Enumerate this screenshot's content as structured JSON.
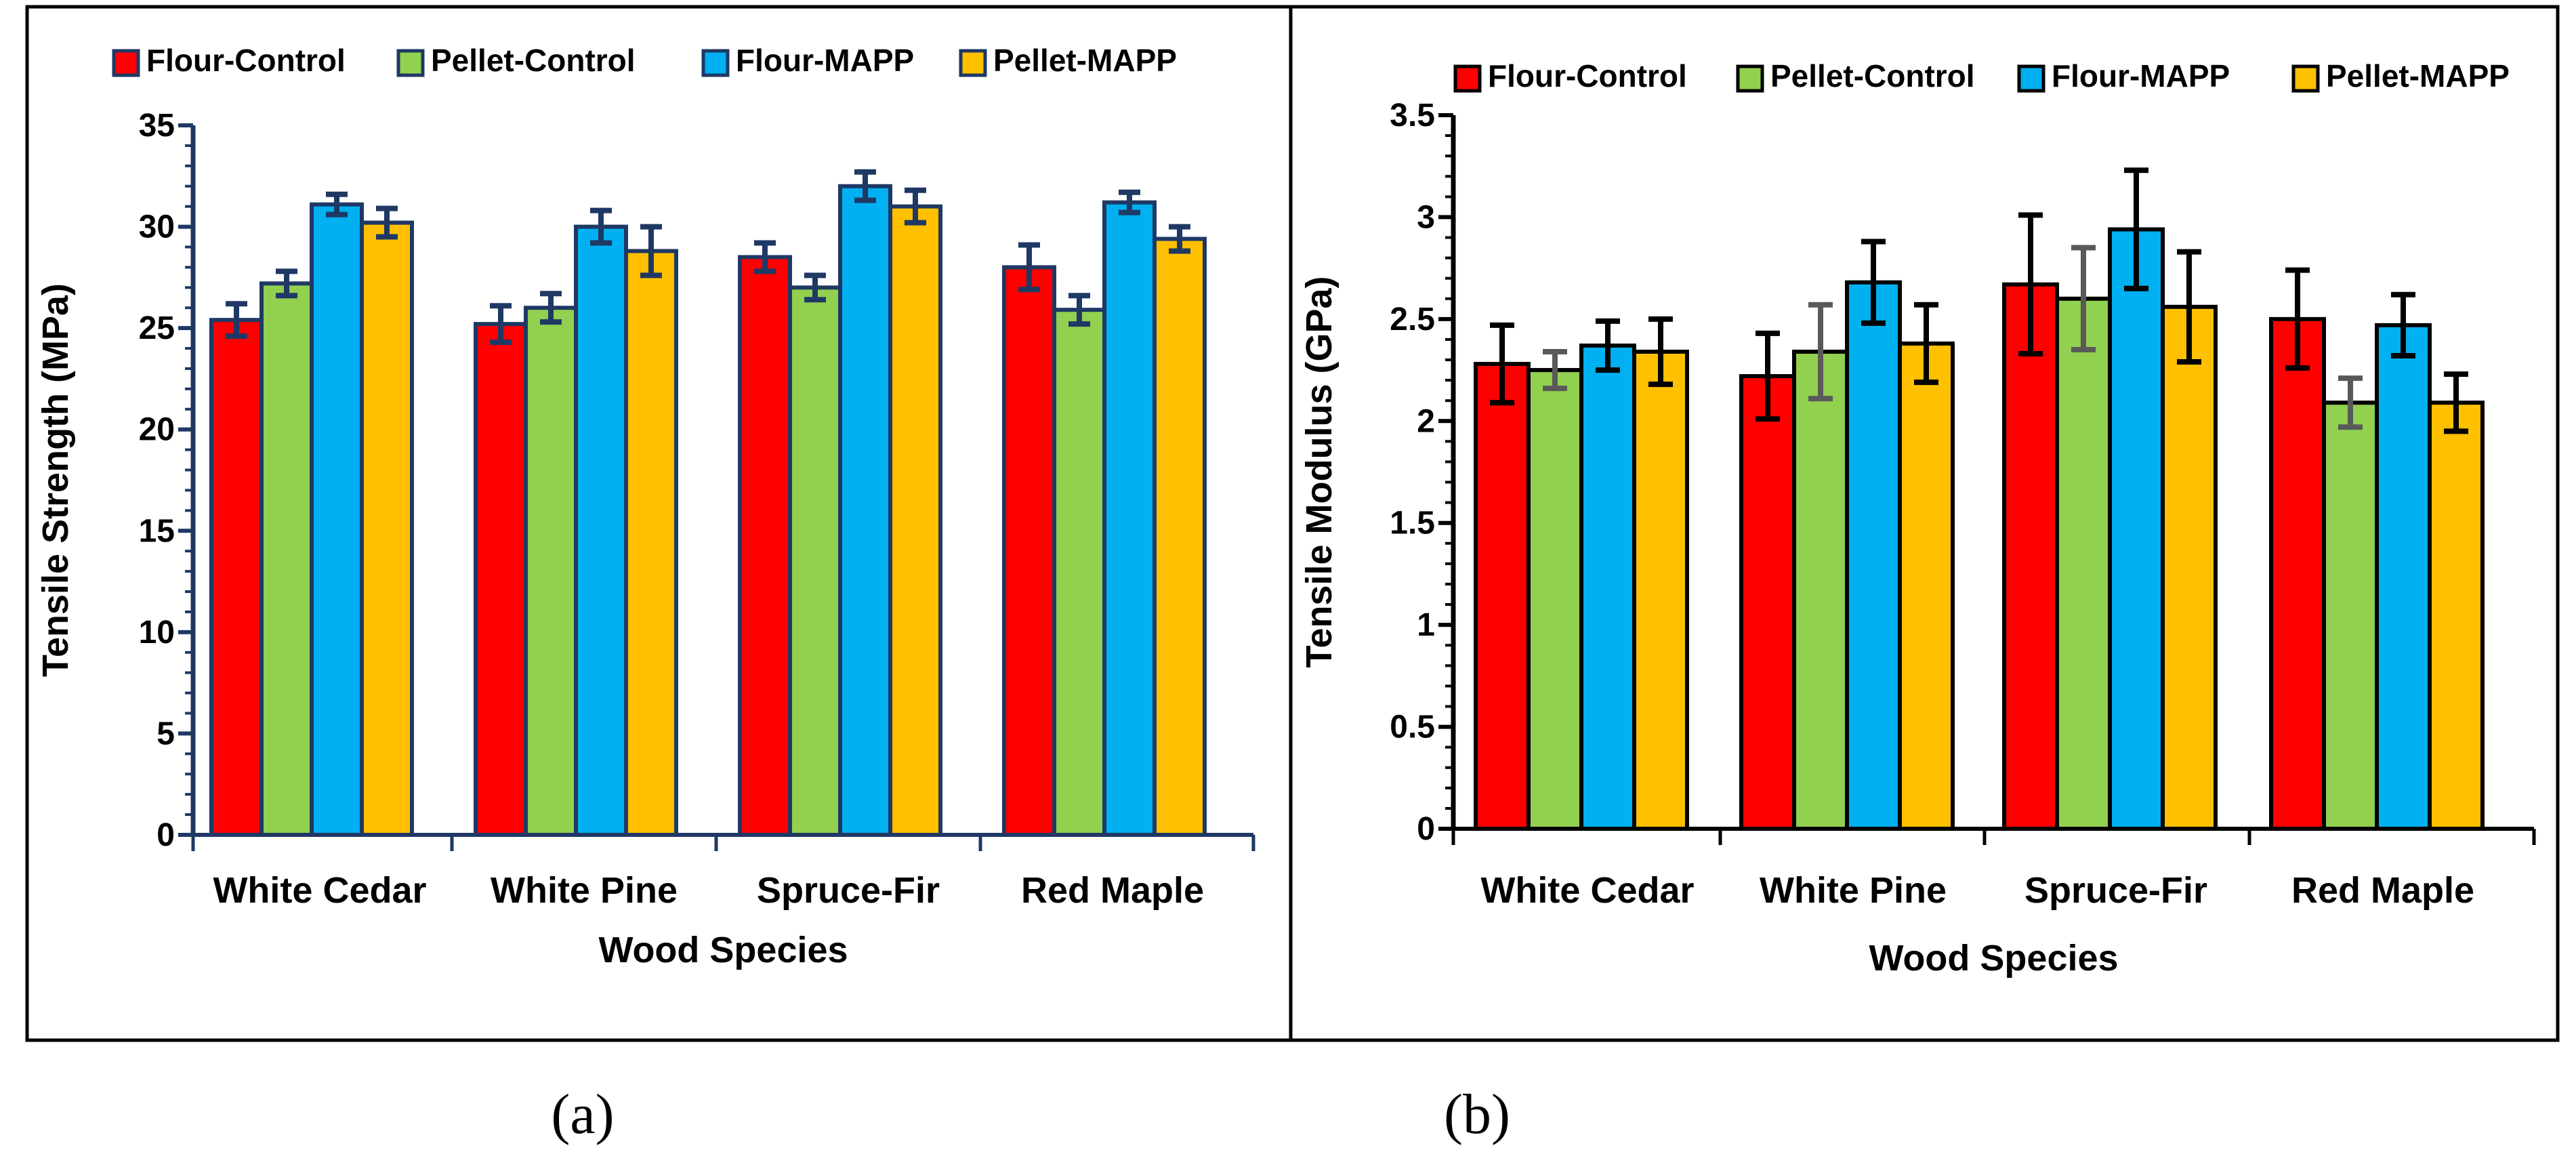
{
  "captions": {
    "a": "(a)",
    "b": "(b)"
  },
  "colors": {
    "Flour-Control": "#ff0000",
    "Pellet-Control": "#92d050",
    "Flour-MAPP": "#00b0f0",
    "Pellet-MAPP": "#ffc000"
  },
  "chart_data": [
    {
      "type": "bar",
      "panel": "a",
      "title": "",
      "xlabel": "Wood Species",
      "ylabel": "Tensile Strength (MPa)",
      "categories": [
        "White Cedar",
        "White Pine",
        "Spruce-Fir",
        "Red Maple"
      ],
      "ylim": [
        0,
        35
      ],
      "yticks": [
        0,
        5,
        10,
        15,
        20,
        25,
        30,
        35
      ],
      "ytick_labels": [
        "0",
        "5",
        "10",
        "15",
        "20",
        "25",
        "30",
        "35"
      ],
      "legend_position": "top",
      "bar_outline": "#1f3864",
      "error_color": "#1f3864",
      "series": [
        {
          "name": "Flour-Control",
          "values": [
            25.4,
            25.2,
            28.5,
            28.0
          ],
          "errors": [
            0.8,
            0.9,
            0.7,
            1.1
          ]
        },
        {
          "name": "Pellet-Control",
          "values": [
            27.2,
            26.0,
            27.0,
            25.9
          ],
          "errors": [
            0.6,
            0.7,
            0.6,
            0.7
          ]
        },
        {
          "name": "Flour-MAPP",
          "values": [
            31.1,
            30.0,
            32.0,
            31.2
          ],
          "errors": [
            0.5,
            0.8,
            0.7,
            0.5
          ]
        },
        {
          "name": "Pellet-MAPP",
          "values": [
            30.2,
            28.8,
            31.0,
            29.4
          ],
          "errors": [
            0.7,
            1.2,
            0.8,
            0.6
          ]
        }
      ]
    },
    {
      "type": "bar",
      "panel": "b",
      "title": "",
      "xlabel": "Wood Species",
      "ylabel": "Tensile Modulus (GPa)",
      "categories": [
        "White Cedar",
        "White Pine",
        "Spruce-Fir",
        "Red Maple"
      ],
      "ylim": [
        0,
        3.5
      ],
      "yticks": [
        0,
        0.5,
        1,
        1.5,
        2,
        2.5,
        3,
        3.5
      ],
      "ytick_labels": [
        "0",
        "0.5",
        "1",
        "1.5",
        "2",
        "2.5",
        "3",
        "3.5"
      ],
      "legend_position": "top",
      "bar_outline": "#000000",
      "error_color": "#000000",
      "series": [
        {
          "name": "Flour-Control",
          "values": [
            2.28,
            2.22,
            2.67,
            2.5
          ],
          "errors": [
            0.19,
            0.21,
            0.34,
            0.24
          ],
          "error_colors": [
            "#000000",
            "#000000",
            "#000000",
            "#000000"
          ]
        },
        {
          "name": "Pellet-Control",
          "values": [
            2.25,
            2.34,
            2.6,
            2.09
          ],
          "errors": [
            0.09,
            0.23,
            0.25,
            0.12
          ],
          "error_colors": [
            "#595959",
            "#595959",
            "#595959",
            "#595959"
          ]
        },
        {
          "name": "Flour-MAPP",
          "values": [
            2.37,
            2.68,
            2.94,
            2.47
          ],
          "errors": [
            0.12,
            0.2,
            0.29,
            0.15
          ],
          "error_colors": [
            "#000000",
            "#000000",
            "#000000",
            "#000000"
          ]
        },
        {
          "name": "Pellet-MAPP",
          "values": [
            2.34,
            2.38,
            2.56,
            2.09
          ],
          "errors": [
            0.16,
            0.19,
            0.27,
            0.14
          ],
          "error_colors": [
            "#000000",
            "#000000",
            "#000000",
            "#000000"
          ]
        }
      ]
    }
  ]
}
